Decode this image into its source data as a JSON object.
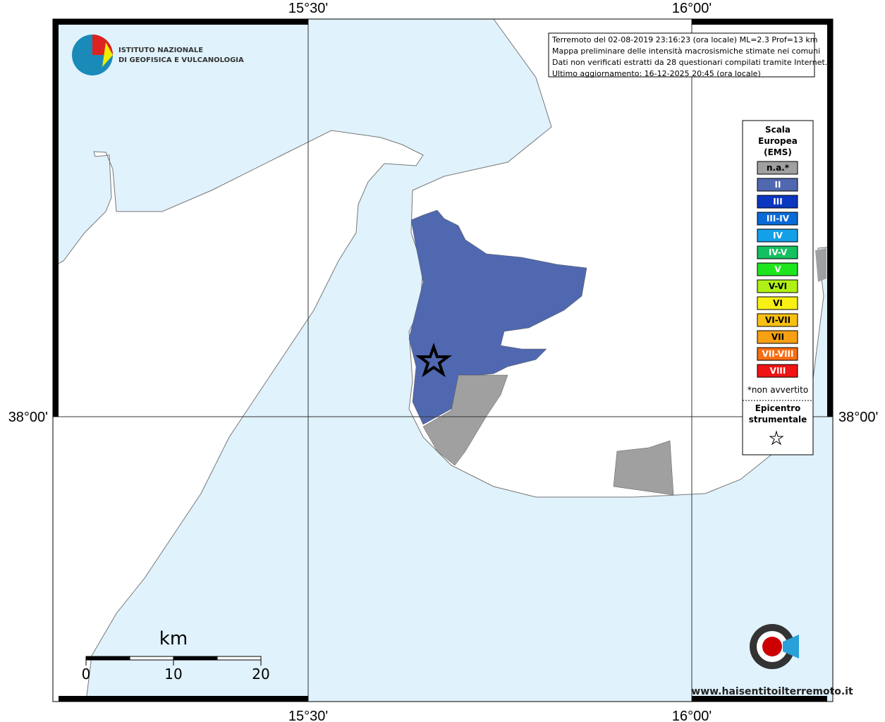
{
  "axes": {
    "top": [
      "15°30'",
      "16°00'"
    ],
    "bottom": [
      "15°30'",
      "16°00'"
    ],
    "left": [
      "38°00'"
    ],
    "right": [
      "38°00'"
    ]
  },
  "logo": {
    "line1": "ISTITUTO NAZIONALE",
    "line2": "DI GEOFISICA E VULCANOLOGIA"
  },
  "info": [
    "Terremoto del 02-08-2019 23:16:23 (ora locale) ML=2.3 Prof=13 km",
    "Mappa preliminare delle intensità macrosismiche stimate nei comuni",
    "Dati non verificati estratti da 28 questionari compilati tramite Internet.",
    "Ultimo aggiornamento: 16-12-2025 20:45 (ora locale)"
  ],
  "legend": {
    "title": [
      "Scala",
      "Europea",
      "(EMS)"
    ],
    "classes": [
      {
        "label": "n.a.*",
        "color": "#a0a0a0"
      },
      {
        "label": "II",
        "color": "#5068b0"
      },
      {
        "label": "III",
        "color": "#0a36c0"
      },
      {
        "label": "III-IV",
        "color": "#0a6ad8"
      },
      {
        "label": "IV",
        "color": "#14a0e8"
      },
      {
        "label": "IV-V",
        "color": "#14c060"
      },
      {
        "label": "V",
        "color": "#1ee61e"
      },
      {
        "label": "V-VI",
        "color": "#b0f014"
      },
      {
        "label": "VI",
        "color": "#f8f014"
      },
      {
        "label": "VI-VII",
        "color": "#f8c014"
      },
      {
        "label": "VII",
        "color": "#f8a014"
      },
      {
        "label": "VII-VIII",
        "color": "#f86e14"
      },
      {
        "label": "VIII",
        "color": "#f01414"
      }
    ],
    "note": "*non avvertito",
    "epicenter": [
      "Epicentro",
      "strumentale"
    ]
  },
  "scale_bar": {
    "unit": "km",
    "labels": [
      0,
      10,
      20
    ]
  },
  "watermark": "www.haisentitoilterremoto.it"
}
